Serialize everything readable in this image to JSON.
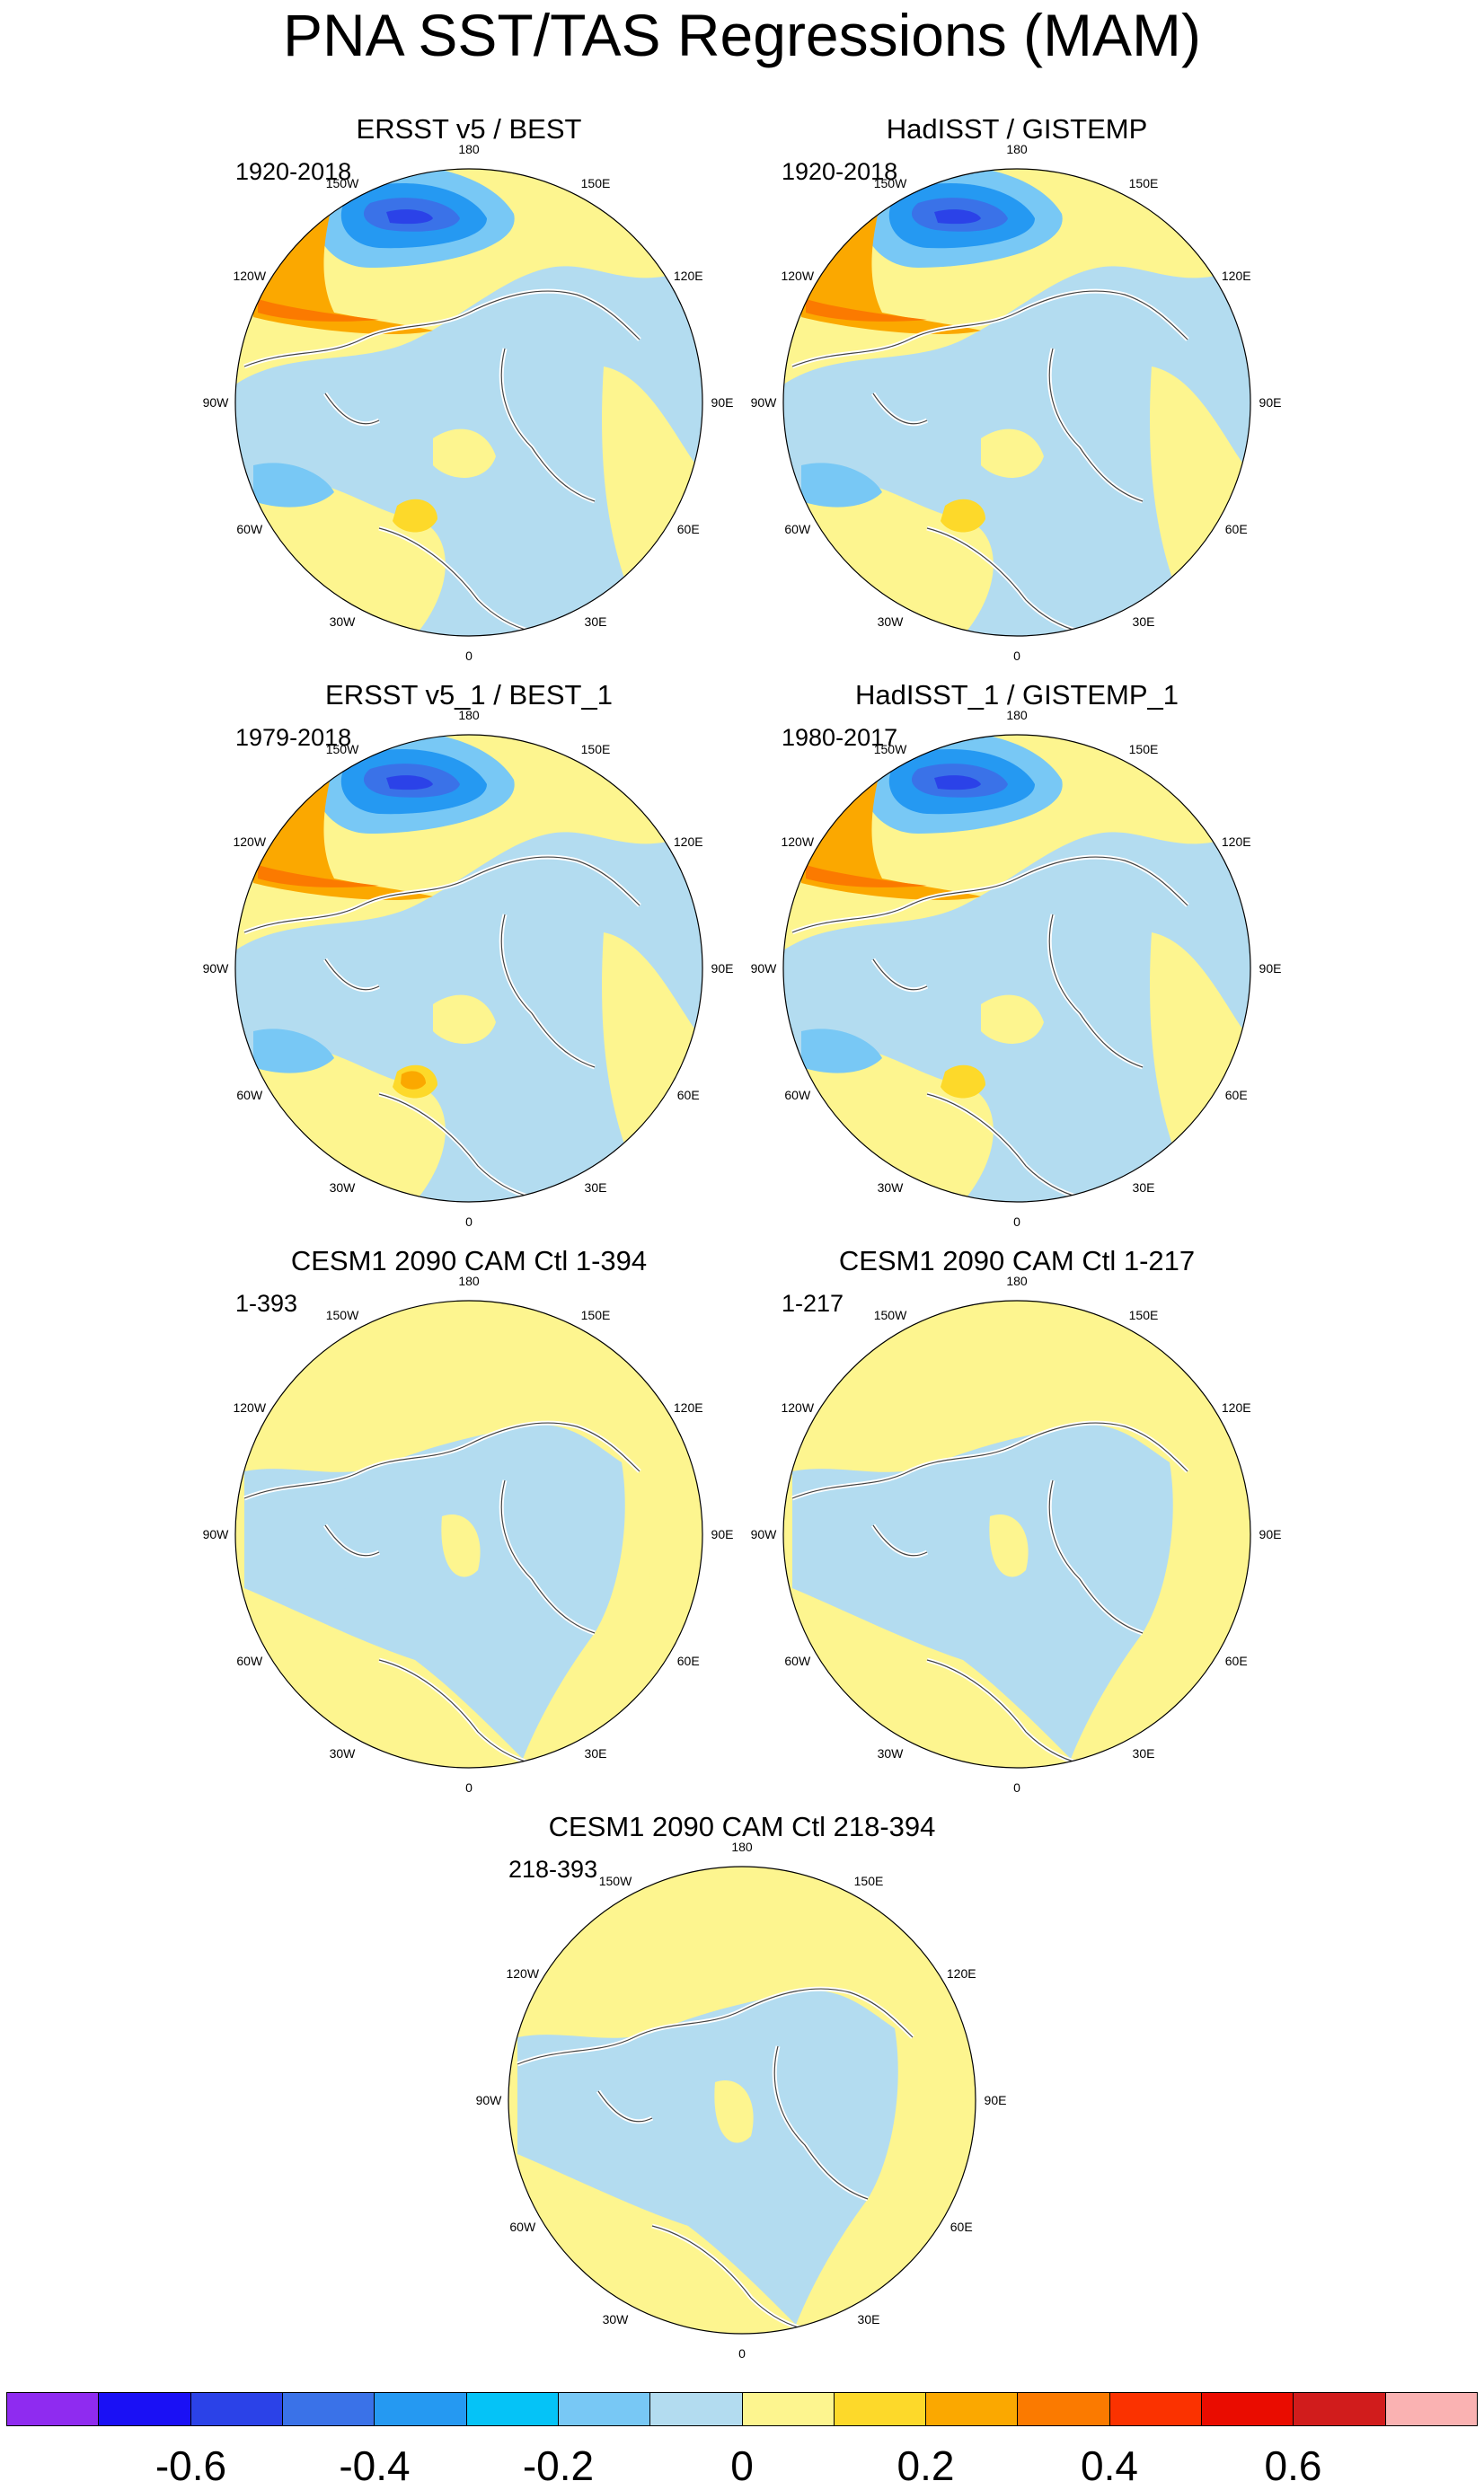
{
  "title": "PNA SST/TAS Regressions (MAM)",
  "lon_labels": [
    "180",
    "150E",
    "120E",
    "90E",
    "60E",
    "30E",
    "0",
    "30W",
    "60W",
    "90W",
    "120W",
    "150W"
  ],
  "panels": [
    {
      "id": "ersst",
      "title": "ERSST v5 / BEST",
      "period": "1920-2018",
      "pattern": "obs"
    },
    {
      "id": "hadisst",
      "title": "HadISST / GISTEMP",
      "period": "1920-2018",
      "pattern": "obs"
    },
    {
      "id": "ersst1",
      "title": "ERSST v5_1 / BEST_1",
      "period": "1979-2018",
      "pattern": "obs"
    },
    {
      "id": "hadisst1",
      "title": "HadISST_1 / GISTEMP_1",
      "period": "1980-2017",
      "pattern": "obs"
    },
    {
      "id": "cesm_a",
      "title": "CESM1 2090 CAM Ctl 1-394",
      "period": "1-393",
      "pattern": "model"
    },
    {
      "id": "cesm_b",
      "title": "CESM1 2090 CAM Ctl 1-217",
      "period": "1-217",
      "pattern": "model"
    },
    {
      "id": "cesm_c",
      "title": "CESM1 2090 CAM Ctl 218-394",
      "period": "218-393",
      "pattern": "model"
    }
  ],
  "colorbar": {
    "colors": [
      "#8f2bf0",
      "#1a10f5",
      "#2b42e8",
      "#3a72e8",
      "#2599f2",
      "#05c3f7",
      "#78c8f5",
      "#b3dcf0",
      "#fdf58f",
      "#fdd92a",
      "#fba800",
      "#fb7a00",
      "#fb3200",
      "#ea0c00",
      "#d11c1c",
      "#fab2b2"
    ],
    "tick_labels": [
      "-0.6",
      "-0.4",
      "-0.2",
      "0",
      "0.2",
      "0.4",
      "0.6"
    ],
    "tick_boundaries": [
      1,
      3,
      5,
      7,
      9,
      11,
      13
    ]
  }
}
